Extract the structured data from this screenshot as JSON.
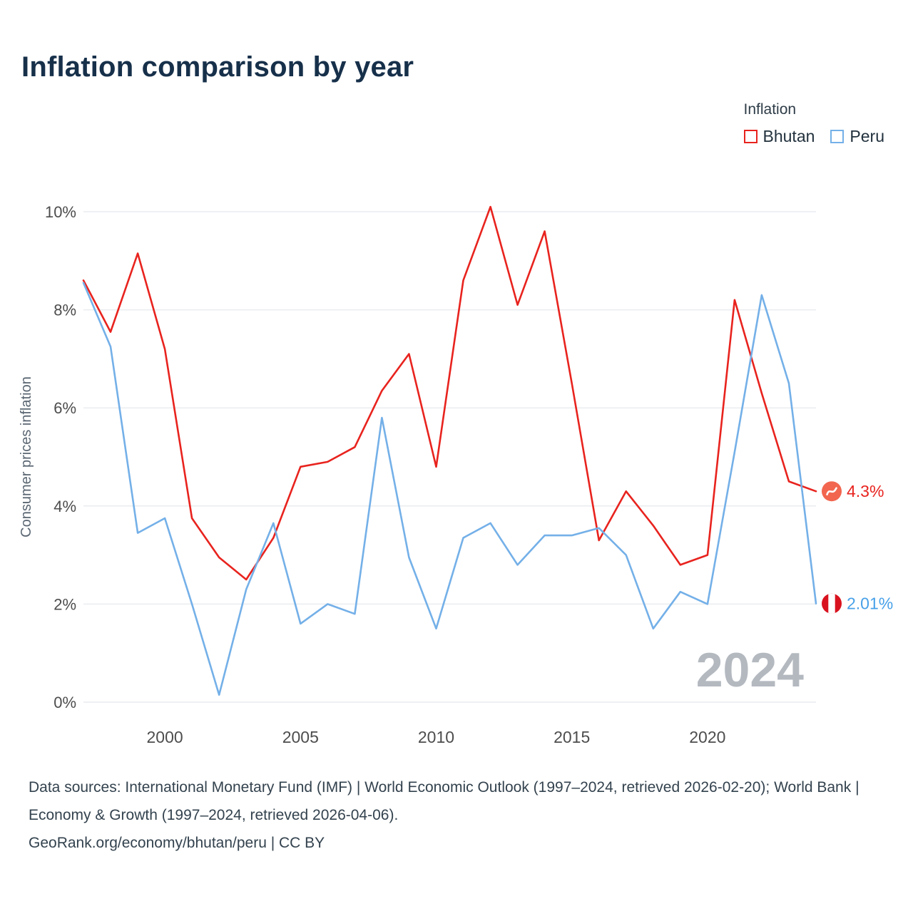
{
  "title": "Inflation comparison by year",
  "legend": {
    "title": "Inflation",
    "series": [
      {
        "label": "Bhutan",
        "color": "#e8231e"
      },
      {
        "label": "Peru",
        "color": "#74b0e8"
      }
    ]
  },
  "chart_data": {
    "type": "line",
    "title": "Inflation comparison by year",
    "ylabel": "Consumer prices inflation",
    "xlabel": "",
    "grid": true,
    "legend_position": "top-right",
    "watermark": "2024",
    "xlim": [
      1997,
      2024
    ],
    "ylim": [
      0,
      10
    ],
    "yticks": [
      0,
      2,
      4,
      6,
      8,
      10
    ],
    "ytick_labels": [
      "0%",
      "2%",
      "4%",
      "6%",
      "8%",
      "10%"
    ],
    "xticks": [
      2000,
      2005,
      2010,
      2015,
      2020
    ],
    "xtick_labels": [
      "2000",
      "2005",
      "2010",
      "2015",
      "2020"
    ],
    "x": [
      1997,
      1998,
      1999,
      2000,
      2001,
      2002,
      2003,
      2004,
      2005,
      2006,
      2007,
      2008,
      2009,
      2010,
      2011,
      2012,
      2013,
      2014,
      2015,
      2016,
      2017,
      2018,
      2019,
      2020,
      2021,
      2022,
      2023,
      2024
    ],
    "series": [
      {
        "name": "Bhutan",
        "color": "#e8231e",
        "label_color": "#e8231e",
        "end_label": "4.3%",
        "flag_icon": "bhutan-flag-icon",
        "values": [
          8.6,
          7.55,
          9.15,
          7.2,
          3.75,
          2.95,
          2.5,
          3.35,
          4.8,
          4.9,
          5.2,
          6.35,
          7.1,
          4.8,
          8.6,
          10.1,
          8.1,
          9.6,
          6.5,
          3.3,
          4.3,
          3.6,
          2.8,
          3.0,
          8.2,
          6.3,
          4.5,
          4.3
        ]
      },
      {
        "name": "Peru",
        "color": "#74b0e8",
        "label_color": "#47a0e8",
        "end_label": "2.01%",
        "flag_icon": "peru-flag-icon",
        "values": [
          8.55,
          7.25,
          3.45,
          3.75,
          2.0,
          0.15,
          2.3,
          3.65,
          1.6,
          2.0,
          1.8,
          5.8,
          2.95,
          1.5,
          3.35,
          3.65,
          2.8,
          3.4,
          3.4,
          3.55,
          3.0,
          1.5,
          2.25,
          2.0,
          5.1,
          8.3,
          6.5,
          2.01
        ]
      }
    ]
  },
  "footer": {
    "sources": "Data sources: International Monetary Fund (IMF) | World Economic Outlook (1997–2024, retrieved 2026-02-20); World Bank | Economy & Growth (1997–2024, retrieved 2026-04-06).",
    "attribution": "GeoRank.org/economy/bhutan/peru | CC BY"
  },
  "colors": {
    "grid": "#e9ecef",
    "tick_text": "#4d4d4d",
    "axis_label": "#5a6672",
    "watermark": "#b4b9c0",
    "bhutan_flag_bg": "#f2664f",
    "peru_flag_red": "#d9121f"
  }
}
